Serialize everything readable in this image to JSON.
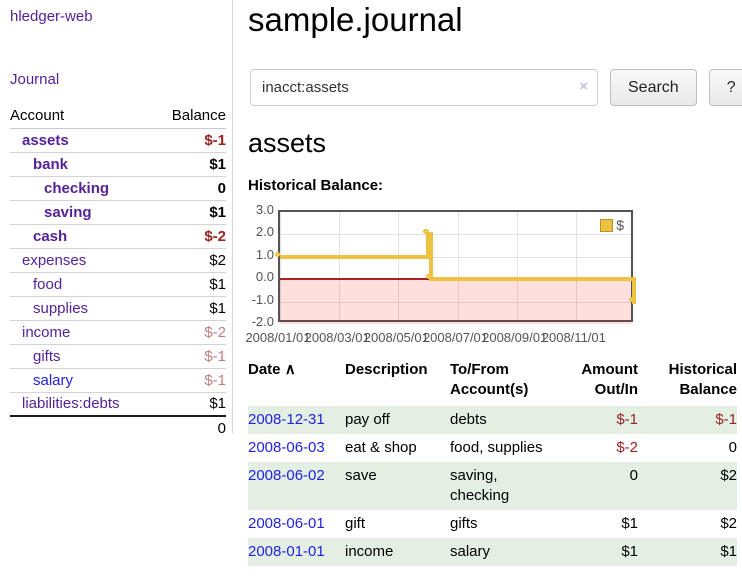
{
  "app": {
    "title": "hledger-web"
  },
  "colors": {
    "link_purple": "#552299",
    "link_blue": "#2222dd",
    "negative_red": "#992222",
    "income_rose": "#c17e7e",
    "zebra_green": "#e2efe2",
    "chart_gold": "#edc240"
  },
  "sidebar": {
    "journal_link": "Journal",
    "columns": {
      "account": "Account",
      "balance": "Balance"
    },
    "accounts": [
      {
        "name": "assets",
        "balance": "$-1"
      },
      {
        "name": "bank",
        "balance": "$1"
      },
      {
        "name": "checking",
        "balance": "0"
      },
      {
        "name": "saving",
        "balance": "$1"
      },
      {
        "name": "cash",
        "balance": "$-2"
      },
      {
        "name": "expenses",
        "balance": "$2"
      },
      {
        "name": "food",
        "balance": "$1"
      },
      {
        "name": "supplies",
        "balance": "$1"
      },
      {
        "name": "income",
        "balance": "$-2"
      },
      {
        "name": "gifts",
        "balance": "$-1"
      },
      {
        "name": "salary",
        "balance": "$-1"
      },
      {
        "name": "liabilities:debts",
        "balance": "$1"
      }
    ],
    "total": "0"
  },
  "header": {
    "title": "sample.journal"
  },
  "search": {
    "value": "inacct:assets",
    "clear_icon": "×",
    "button_label": "Search",
    "help_label": "?"
  },
  "account_page": {
    "title": "assets",
    "chart_label": "Historical Balance:"
  },
  "chart_data": {
    "type": "line",
    "step": true,
    "series": [
      {
        "name": "$",
        "color": "#edc240",
        "points": [
          {
            "date": "2008-01-01",
            "x": 0,
            "y": 1
          },
          {
            "date": "2008-06-01",
            "x": 5.0,
            "y": 2
          },
          {
            "date": "2008-06-02",
            "x": 5.05,
            "y": 2
          },
          {
            "date": "2008-06-03",
            "x": 5.1,
            "y": 0
          },
          {
            "date": "2008-12-31",
            "x": 11.97,
            "y": -1
          }
        ]
      }
    ],
    "xlim": [
      0,
      12
    ],
    "ylim": [
      -2,
      3
    ],
    "xticks": [
      {
        "v": 0,
        "label": "2008/01/01"
      },
      {
        "v": 2,
        "label": "2008/03/01"
      },
      {
        "v": 4,
        "label": "2008/05/01"
      },
      {
        "v": 6,
        "label": "2008/07/01"
      },
      {
        "v": 8,
        "label": "2008/09/01"
      },
      {
        "v": 10,
        "label": "2008/11/01"
      }
    ],
    "yticks": [
      {
        "v": 3,
        "label": "3.0"
      },
      {
        "v": 2,
        "label": "2.0"
      },
      {
        "v": 1,
        "label": "1.0"
      },
      {
        "v": 0,
        "label": "0.0"
      },
      {
        "v": -1,
        "label": "-1.0"
      },
      {
        "v": -2,
        "label": "-2.0"
      }
    ],
    "grid": true,
    "legend_position": "top-right",
    "negative_region_fill": "rgba(255,0,0,0.13)",
    "zero_line_color": "#aa2222"
  },
  "register": {
    "columns": {
      "date": "Date",
      "sort_indicator": "∧",
      "description": "Description",
      "accounts": "To/From Account(s)",
      "amount": "Amount Out/In",
      "balance": "Historical Balance"
    },
    "rows": [
      {
        "date": "2008-12-31",
        "description": "pay off",
        "accounts": "debts",
        "amount": "$-1",
        "balance": "$-1"
      },
      {
        "date": "2008-06-03",
        "description": "eat & shop",
        "accounts": "food, supplies",
        "amount": "$-2",
        "balance": "0"
      },
      {
        "date": "2008-06-02",
        "description": "save",
        "accounts": "saving, checking",
        "amount": "0",
        "balance": "$2"
      },
      {
        "date": "2008-06-01",
        "description": "gift",
        "accounts": "gifts",
        "amount": "$1",
        "balance": "$2"
      },
      {
        "date": "2008-01-01",
        "description": "income",
        "accounts": "salary",
        "amount": "$1",
        "balance": "$1"
      }
    ]
  }
}
